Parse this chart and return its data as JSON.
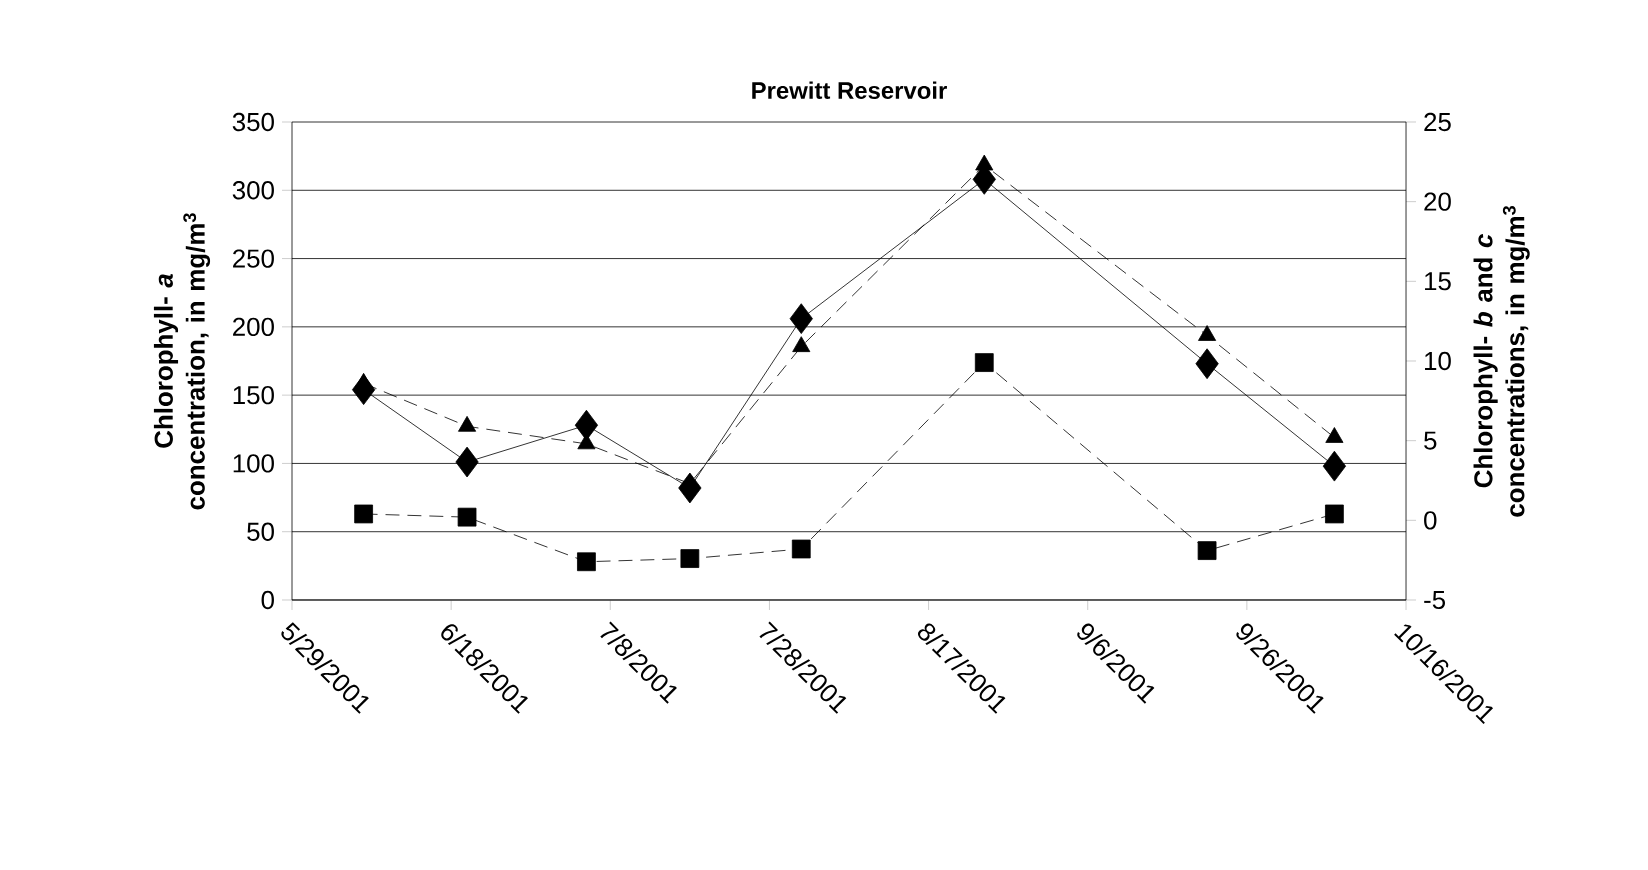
{
  "chart_data": {
    "type": "line",
    "title": "Prewitt Reservoir",
    "ylabel": "Chlorophyll- *a* concentration, in mg/m$^{3}$",
    "y2label": "Chlorophyll- *b* and *c* concentrations, in mg/m$^{3}$",
    "x": [
      "2001-06-07",
      "2001-06-20",
      "2001-07-05",
      "2001-07-18",
      "2001-08-01",
      "2001-08-24",
      "2001-09-21",
      "2001-10-07"
    ],
    "xlim": [
      "2001-05-29",
      "2001-10-16"
    ],
    "xticks": [
      {
        "value": "2001-05-29",
        "label": "5/29/2001"
      },
      {
        "value": "2001-06-18",
        "label": "6/18/2001"
      },
      {
        "value": "2001-07-08",
        "label": "7/8/2001"
      },
      {
        "value": "2001-07-28",
        "label": "7/28/2001"
      },
      {
        "value": "2001-08-17",
        "label": "8/17/2001"
      },
      {
        "value": "2001-09-06",
        "label": "9/6/2001"
      },
      {
        "value": "2001-09-26",
        "label": "9/26/2001"
      },
      {
        "value": "2001-10-16",
        "label": "10/16/2001"
      }
    ],
    "ylim": [
      0,
      350
    ],
    "yticks": [
      0,
      50,
      100,
      150,
      200,
      250,
      300,
      350
    ],
    "y2lim": [
      -5,
      25
    ],
    "y2ticks": [
      -5,
      0,
      5,
      10,
      15,
      20,
      25
    ],
    "grid": "y",
    "series": [
      {
        "color": "#000000",
        "marker": "diamond",
        "line_style": "solid",
        "values": [
          154,
          101,
          128,
          82,
          206,
          308,
          173,
          98
        ]
      },
      {
        "color": "#000000",
        "marker": "triangle",
        "line_style": "dashed",
        "axis": "y2",
        "values": [
          8.6,
          5.9,
          4.8,
          2.3,
          10.9,
          22.3,
          11.6,
          5.2
        ]
      },
      {
        "color": "#000000",
        "marker": "square",
        "line_style": "dashed",
        "axis": "y2",
        "values": [
          0.4,
          0.2,
          -2.6,
          -2.4,
          -1.8,
          9.9,
          -1.9,
          0.4
        ]
      }
    ]
  }
}
